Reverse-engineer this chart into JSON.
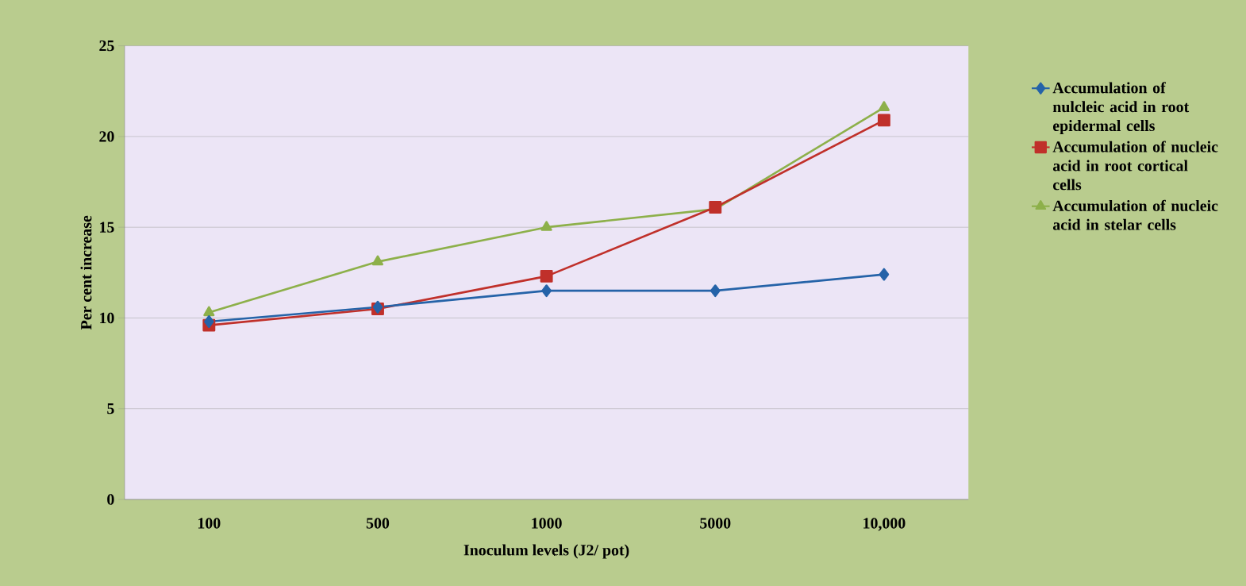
{
  "chart_data": {
    "type": "line",
    "xlabel": "Inoculum levels (J2/ pot)",
    "ylabel": "Per cent increase",
    "categories": [
      "100",
      "500",
      "1000",
      "5000",
      "10,000"
    ],
    "series": [
      {
        "name": "Accumulation of nulcleic acid in root epidermal cells",
        "color": "#2563a8",
        "marker": "diamond",
        "values": [
          9.8,
          10.6,
          11.5,
          11.5,
          12.4
        ]
      },
      {
        "name": "Accumulation of nucleic acid in root cortical cells",
        "color": "#c0302a",
        "marker": "square",
        "values": [
          9.6,
          10.5,
          12.3,
          16.1,
          20.9
        ]
      },
      {
        "name": "Accumulation of nucleic acid in stelar cells",
        "color": "#8db04a",
        "marker": "triangle",
        "values": [
          10.3,
          13.1,
          15.0,
          16.0,
          21.6
        ]
      }
    ],
    "ylim": [
      0,
      25
    ],
    "yticks": [
      0,
      5,
      10,
      15,
      20,
      25
    ],
    "grid": "y",
    "legend": "right",
    "line_style": "solid"
  }
}
